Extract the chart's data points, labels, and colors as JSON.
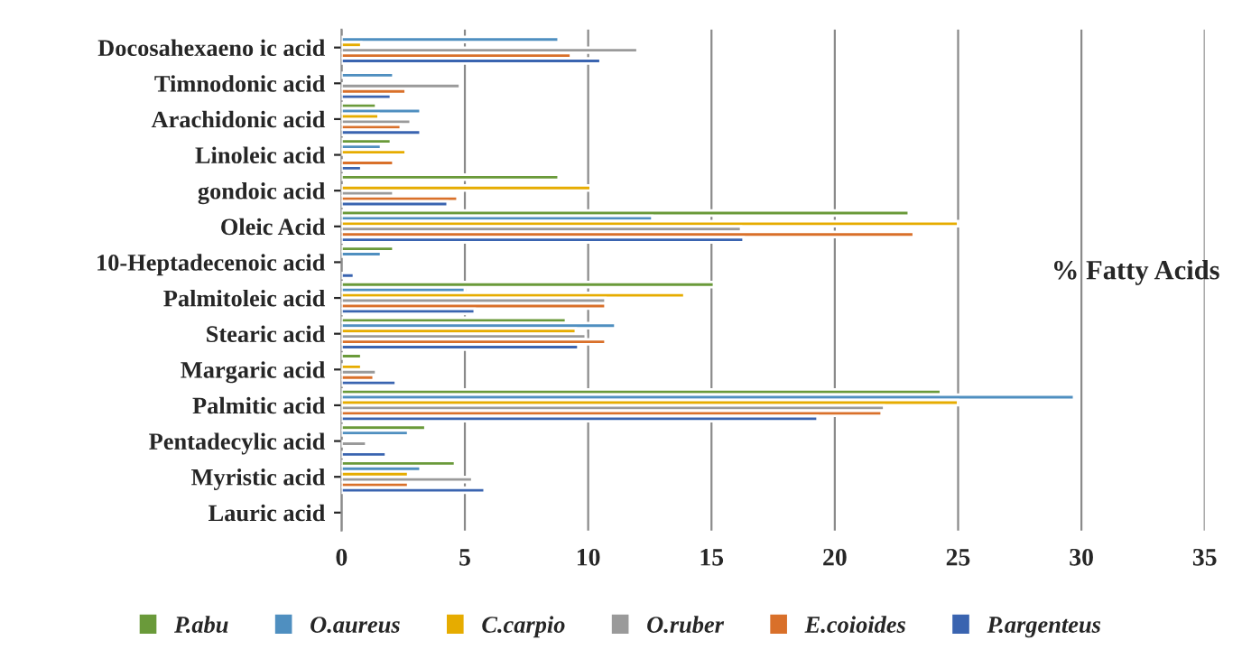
{
  "chart_data": {
    "type": "bar",
    "orientation": "horizontal",
    "categories": [
      "Docosahexaeno ic acid",
      "Timnodonic acid",
      "Arachidonic acid",
      "Linoleic acid",
      "gondoic acid",
      "Oleic Acid",
      "10-Heptadecenoic acid",
      "Palmitoleic acid",
      "Stearic acid",
      "Margaric acid",
      "Palmitic acid",
      "Pentadecylic acid",
      "Myristic acid",
      "Lauric acid"
    ],
    "series": [
      {
        "name": "P.abu",
        "color": "#6a9a3a",
        "values": [
          null,
          null,
          1.4,
          2.0,
          8.8,
          23.0,
          2.1,
          15.1,
          9.1,
          0.8,
          24.3,
          3.4,
          4.6,
          null
        ]
      },
      {
        "name": "O.aureus",
        "color": "#4f8fc0",
        "values": [
          8.8,
          2.1,
          3.2,
          1.6,
          null,
          12.6,
          1.6,
          5.0,
          11.1,
          null,
          29.7,
          2.7,
          3.2,
          null
        ]
      },
      {
        "name": "C.carpio",
        "color": "#e6ac00",
        "values": [
          0.8,
          null,
          1.5,
          2.6,
          10.1,
          25.0,
          null,
          13.9,
          9.5,
          0.8,
          25.0,
          null,
          2.7,
          null
        ]
      },
      {
        "name": "O.ruber",
        "color": "#9a9a9a",
        "values": [
          12.0,
          4.8,
          2.8,
          null,
          2.1,
          16.2,
          null,
          10.7,
          9.9,
          1.4,
          22.0,
          1.0,
          5.3,
          null
        ]
      },
      {
        "name": "E.coioides",
        "color": "#d9702a",
        "values": [
          9.3,
          2.6,
          2.4,
          2.1,
          4.7,
          23.2,
          null,
          10.7,
          10.7,
          1.3,
          21.9,
          null,
          2.7,
          null
        ]
      },
      {
        "name": "P.argenteus",
        "color": "#3a64b0",
        "values": [
          10.5,
          2.0,
          3.2,
          0.8,
          4.3,
          16.3,
          0.5,
          5.4,
          9.6,
          2.2,
          19.3,
          1.8,
          5.8,
          null
        ]
      }
    ],
    "xlim": [
      0,
      35
    ],
    "xticks": [
      0,
      5,
      10,
      15,
      20,
      25,
      30,
      35
    ],
    "grid": "x",
    "legend": "bottom",
    "annotations": [
      "% Fatty Acids"
    ]
  }
}
